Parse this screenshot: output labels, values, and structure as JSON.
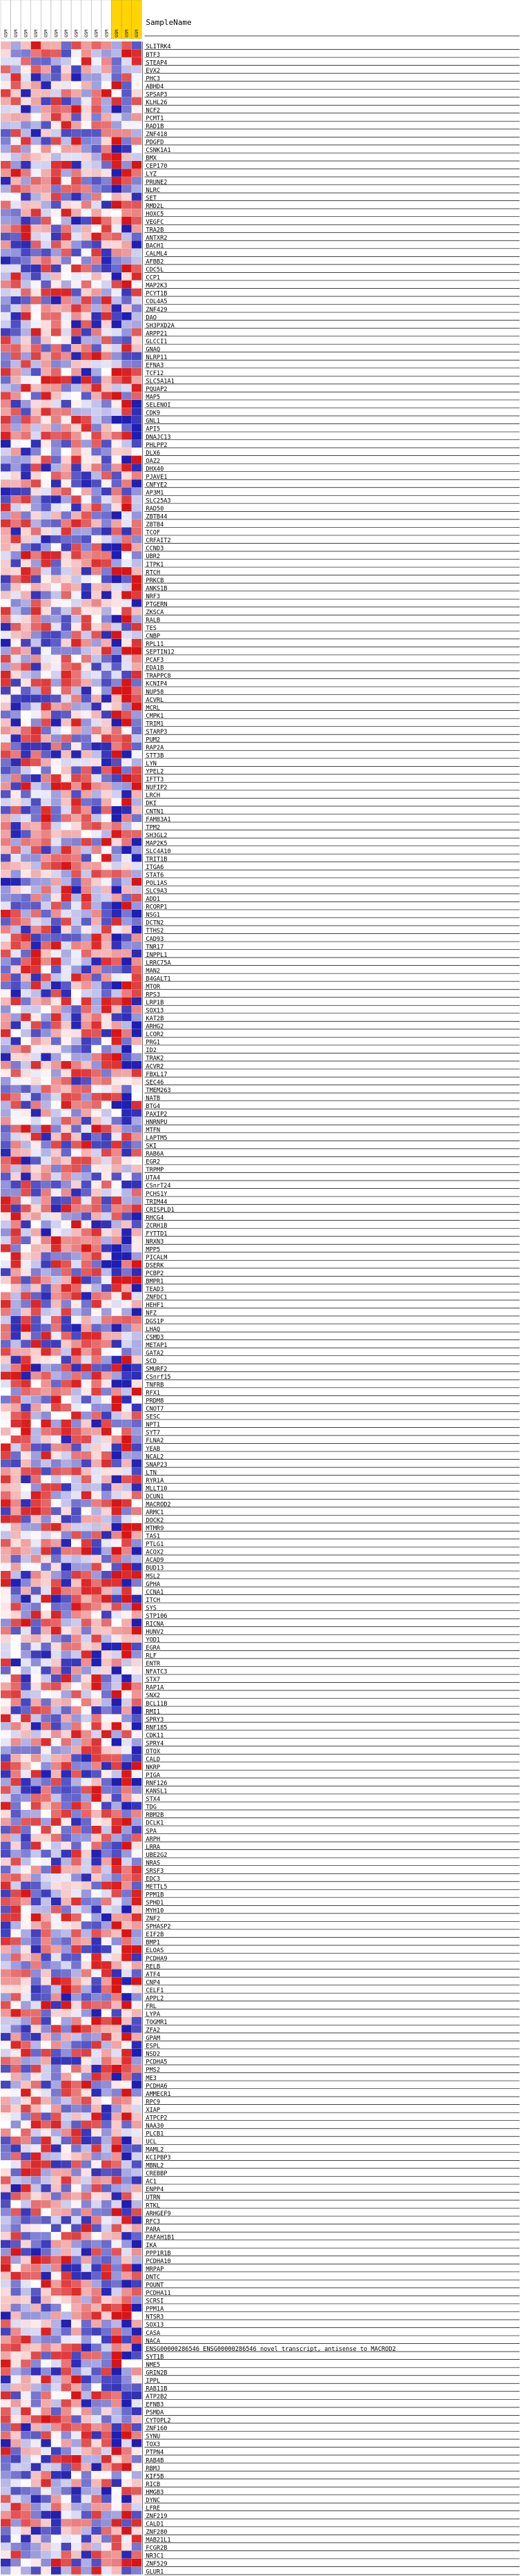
{
  "chart_data": {
    "type": "heatmap",
    "title": "",
    "header_label": "SampleName",
    "columns": [
      {
        "label": "GSM",
        "color": "#ffffff"
      },
      {
        "label": "GSM",
        "color": "#ffffff"
      },
      {
        "label": "GSM",
        "color": "#ffffff"
      },
      {
        "label": "GSM",
        "color": "#ffffff"
      },
      {
        "label": "GSM",
        "color": "#ffffff"
      },
      {
        "label": "GSM",
        "color": "#ffffff"
      },
      {
        "label": "GSM",
        "color": "#ffffff"
      },
      {
        "label": "GSM",
        "color": "#ffffff"
      },
      {
        "label": "GSM",
        "color": "#ffffff"
      },
      {
        "label": "GSM",
        "color": "#ffffff"
      },
      {
        "label": "GSM",
        "color": "#ffffff"
      },
      {
        "label": "GSM",
        "color": "#ffd400"
      },
      {
        "label": "GSM",
        "color": "#ffd400"
      },
      {
        "label": "GSM",
        "color": "#ffd400"
      }
    ],
    "rows": [
      "SLITRK4",
      "BTF3",
      "STEAP4",
      "EVX2",
      "PHC3",
      "ABHD4",
      "SPSAP3",
      "KLHL26",
      "NCF2",
      "PCMT1",
      "RAD1B",
      "ZNF418",
      "PDGFD",
      "CSNK1A1",
      "BMX",
      "CEP170",
      "LYZ",
      "PRUNE2",
      "NLRC",
      "SET",
      "RMD2L",
      "HOXC5",
      "VEGFC",
      "TRA2B",
      "ANTXR2",
      "BACH1",
      "CALML4",
      "AFBB2",
      "CDC5L",
      "CCP1",
      "MAP2K3",
      "PCYT1B",
      "COL4A5",
      "ZNF429",
      "DAO",
      "SH3PXD2A",
      "ARPP21",
      "GLCCI1",
      "GNAQ",
      "NLRP11",
      "EFNA3",
      "TCF12",
      "SLC5A1A1",
      "PQUAP2",
      "MAP5",
      "SELENOI",
      "CDK9",
      "GNL1",
      "API5",
      "DNAJC13",
      "PHLPP2",
      "DLX6",
      "OAZ2",
      "DHX40",
      "PJAVE1",
      "CNFYE2",
      "AP3M1",
      "SLC25A3",
      "RAD50",
      "ZBTB44",
      "ZBTB4",
      "TCOF",
      "CRFAIT2",
      "CCND3",
      "UBR2",
      "ITPK1",
      "RTCH",
      "PRKCB",
      "ANKS1B",
      "NRF3",
      "PTGERN",
      "ZKSCA",
      "RALB",
      "TES",
      "CNBP",
      "RPL11",
      "SEPTIN12",
      "PCAF3",
      "EDA1B",
      "TRAPPC8",
      "KCNIP4",
      "NUP58",
      "ACVRL",
      "MCRL",
      "CMPK1",
      "TRIM1",
      "STARP3",
      "PUM2",
      "RAP2A",
      "STT3B",
      "LYN",
      "YPEL2",
      "IFTT3",
      "NUFIP2",
      "LRCH",
      "DKI",
      "CNTN1",
      "FAM83A1",
      "TPM2",
      "SH3GL2",
      "MAP2K5",
      "SLC4A10",
      "TRIT1B",
      "ITGA6",
      "STAT6",
      "POL1AS",
      "SLC9A3",
      "ADD1",
      "RCORP1",
      "NSG1",
      "DCTN2",
      "TTHS2",
      "CAD93",
      "TNR17",
      "INPPL1",
      "LRRC75A",
      "MAN2",
      "B4GALT1",
      "MTOR",
      "RPS3",
      "LRP1B",
      "SOX13",
      "KAT2B",
      "ARHG2",
      "LCOR2",
      "PRG1",
      "ID2",
      "TRAK2",
      "ACVR2",
      "FBXL17",
      "SEC46",
      "TMEM263",
      "NATB",
      "BTG4",
      "PAXIP2",
      "HNRNPU",
      "MTFN",
      "LAPTM5",
      "SKI",
      "RAB6A",
      "EGR2",
      "TRPMP",
      "UTA4",
      "CSnrT24",
      "PCHS1Y",
      "TRIM44",
      "CRISPLD1",
      "RHCG4",
      "ZCRH1B",
      "FYTTD1",
      "NRXN3",
      "MPP5",
      "PICALM",
      "DSERK",
      "PCBP2",
      "BMPR1",
      "TEAD3",
      "ZNFDC1",
      "HEHF1",
      "NFZ",
      "DGS1P",
      "LHAQ",
      "CSMD3",
      "METAP1",
      "GATA2",
      "SCD",
      "SMURF2",
      "CSnrf15",
      "TNFRB",
      "RFX1",
      "PRDM8",
      "CNOT7",
      "SESC",
      "NPT1",
      "SYT7",
      "FLNA2",
      "YEAB",
      "NCAL2",
      "SNAP23",
      "LTN",
      "RYR1A",
      "MLLT10",
      "DCUN1",
      "MACROD2",
      "ARMC1",
      "DOCK2",
      "MTMR9",
      "TAS1",
      "PTLG1",
      "ACOX2",
      "ACAD9",
      "BUD13",
      "MSL2",
      "GPHA",
      "CCNA1",
      "ITCH",
      "SYS",
      "STP106",
      "RICNA",
      "HUNV2",
      "YOD1",
      "EGRA",
      "RLF",
      "ENTR",
      "NFATC3",
      "STX7",
      "RAP1A",
      "SNX2",
      "BCL11B",
      "RMI1",
      "SPRY3",
      "RNF185",
      "CDK11",
      "SPRY4",
      "OTOX",
      "CALD",
      "NKRP",
      "PIGA",
      "RNF126",
      "KANSL1",
      "STX4",
      "TDG",
      "RBM2B",
      "DCLK1",
      "SPA",
      "ARPH",
      "LRRA",
      "UBE2G2",
      "NRAS",
      "SRSF3",
      "EDC3",
      "METTL5",
      "PPM1B",
      "SPHD1",
      "MYH10",
      "ZNF2",
      "SPHASP2",
      "EIF2B",
      "BMP1",
      "ELOAS",
      "PCDHA9",
      "RELB",
      "ATF4",
      "CNP4",
      "CELF1",
      "APPL2",
      "FRL",
      "LYPA",
      "TOGMR1",
      "ZFA2",
      "GPAM",
      "ESPL",
      "NSD2",
      "PCDHA5",
      "PMS2",
      "ME3",
      "PCDHA6",
      "AMMECR1",
      "RPC9",
      "XIAP",
      "ATPCP2",
      "NAA30",
      "PLCB1",
      "UCL",
      "MAML2",
      "KCIPBP3",
      "MBNL2",
      "CREBBP",
      "AC1",
      "ENPP4",
      "UTRN",
      "RTKL",
      "ARHGEF9",
      "RFC3",
      "PARA",
      "PAFAH1B1",
      "IKA",
      "PPP1R1B",
      "PCDHA10",
      "MRPAP",
      "DNTC",
      "POUNT",
      "PCDHA11",
      "SCRSI",
      "PPM1A",
      "NTSR3",
      "SOX13",
      "CASA",
      "NACA",
      "ENSG00000286546  ENSG00000286546 novel transcript, antisense to MACROD2",
      "SYT1B",
      "NME5",
      "GRIN2B",
      "IPPL",
      "RAB11B",
      "ATP2B2",
      "EFNB3",
      "PSMDA",
      "CYTOPL2",
      "ZNF160",
      "SYNU",
      "TOX3",
      "PTPN4",
      "RAB4B",
      "RBMJ",
      "KIF5B",
      "RICB",
      "HMGB3",
      "DYNC",
      "LFRE",
      "ZNF219",
      "CALD1",
      "ZNF280",
      "MAB21L1",
      "FCGR2B",
      "NR3C1",
      "ZNF529",
      "GLUR1"
    ]
  }
}
